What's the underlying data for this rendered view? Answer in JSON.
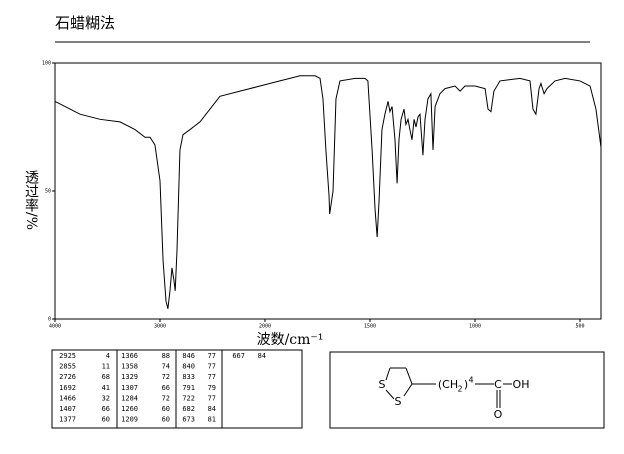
{
  "chart_data": {
    "type": "line",
    "title": "石蜡糊法",
    "xlabel": "波数/cm⁻¹",
    "ylabel": "透过率/%",
    "xlim": [
      4000,
      400
    ],
    "xticks": [
      4000,
      3000,
      2000,
      1500,
      1000,
      500
    ],
    "ylim": [
      0,
      100
    ],
    "yticks": [
      0,
      50,
      100
    ],
    "color": "#000000",
    "x": [
      4000,
      3952,
      3762,
      3571,
      3381,
      3238,
      3143,
      3095,
      3048,
      3000,
      2971,
      2943,
      2925,
      2905,
      2886,
      2867,
      2855,
      2838,
      2810,
      2781,
      2714,
      2619,
      2524,
      2429,
      2238,
      2048,
      1929,
      1833,
      1762,
      1738,
      1724,
      1710,
      1695,
      1692,
      1676,
      1662,
      1643,
      1571,
      1524,
      1510,
      1490,
      1476,
      1466,
      1457,
      1443,
      1429,
      1414,
      1405,
      1395,
      1381,
      1371,
      1362,
      1352,
      1338,
      1329,
      1319,
      1310,
      1300,
      1290,
      1281,
      1271,
      1262,
      1248,
      1238,
      1224,
      1210,
      1200,
      1190,
      1167,
      1143,
      1095,
      1071,
      1048,
      1000,
      952,
      938,
      924,
      910,
      881,
      786,
      738,
      724,
      710,
      695,
      686,
      671,
      657,
      619,
      571,
      500,
      452,
      424,
      400
    ],
    "values": [
      85,
      84,
      80,
      78,
      77,
      74,
      71,
      71,
      68,
      54,
      23,
      7,
      4,
      11,
      20,
      15,
      11,
      27,
      66,
      72,
      74,
      77,
      82,
      87,
      89,
      91,
      93,
      95,
      95,
      94,
      86,
      66,
      48,
      41,
      50,
      86,
      93,
      94,
      94,
      93,
      66,
      43,
      32,
      46,
      74,
      80,
      85,
      81,
      83,
      70,
      53,
      70,
      78,
      82,
      76,
      78,
      74,
      70,
      78,
      75,
      79,
      80,
      64,
      78,
      86,
      88,
      66,
      83,
      88,
      90,
      91,
      89,
      91,
      91,
      90,
      82,
      81,
      89,
      93,
      94,
      93,
      82,
      80,
      90,
      92,
      88,
      90,
      93,
      94,
      93,
      91,
      82,
      67
    ]
  },
  "peaks": [
    [
      2925,
      4
    ],
    [
      2855,
      11
    ],
    [
      2726,
      68
    ],
    [
      1692,
      41
    ],
    [
      1466,
      32
    ],
    [
      1407,
      66
    ],
    [
      1377,
      60
    ],
    [
      1366,
      88
    ],
    [
      1358,
      74
    ],
    [
      1329,
      72
    ],
    [
      1307,
      66
    ],
    [
      1284,
      72
    ],
    [
      1260,
      60
    ],
    [
      1209,
      60
    ],
    [
      846,
      77
    ],
    [
      840,
      77
    ],
    [
      833,
      77
    ],
    [
      791,
      79
    ],
    [
      722,
      77
    ],
    [
      682,
      84
    ],
    [
      673,
      81
    ],
    [
      667,
      84
    ]
  ],
  "structure": {
    "labels": [
      "S",
      "S",
      "(CH",
      "2",
      ")",
      "4",
      "C",
      "OH",
      "O"
    ]
  }
}
